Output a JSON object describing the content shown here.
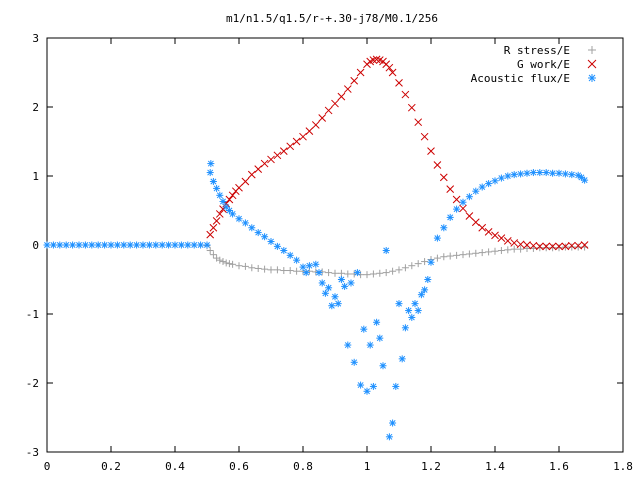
{
  "chart_data": {
    "type": "scatter",
    "title": "m1/n1.5/q1.5/r-+.30-j78/M0.1/256",
    "xlabel": "",
    "ylabel": "",
    "xlim": [
      0,
      1.8
    ],
    "ylim": [
      -3,
      3
    ],
    "xticks": [
      "0",
      "0.2",
      "0.4",
      "0.6",
      "0.8",
      "1",
      "1.2",
      "1.4",
      "1.6",
      "1.8"
    ],
    "yticks": [
      "3",
      "2",
      "1",
      "0",
      "-1",
      "-2",
      "-3"
    ],
    "grid": false,
    "legend_position": "top-right",
    "series": [
      {
        "name": "R stress/E",
        "marker": "plus",
        "color": "#a0a0a0",
        "x": [
          0.5,
          0.51,
          0.52,
          0.53,
          0.54,
          0.55,
          0.56,
          0.57,
          0.58,
          0.6,
          0.62,
          0.64,
          0.66,
          0.68,
          0.7,
          0.72,
          0.74,
          0.76,
          0.78,
          0.8,
          0.82,
          0.84,
          0.86,
          0.88,
          0.9,
          0.92,
          0.94,
          0.96,
          0.98,
          1.0,
          1.02,
          1.04,
          1.06,
          1.08,
          1.1,
          1.12,
          1.14,
          1.16,
          1.18,
          1.2,
          1.22,
          1.24,
          1.26,
          1.28,
          1.3,
          1.32,
          1.34,
          1.36,
          1.38,
          1.4,
          1.42,
          1.44,
          1.46,
          1.48,
          1.5,
          1.52,
          1.54,
          1.56,
          1.58,
          1.6,
          1.62,
          1.64,
          1.66,
          1.68
        ],
        "y": [
          -0.01,
          -0.08,
          -0.14,
          -0.19,
          -0.22,
          -0.24,
          -0.26,
          -0.27,
          -0.28,
          -0.3,
          -0.31,
          -0.33,
          -0.34,
          -0.35,
          -0.36,
          -0.36,
          -0.37,
          -0.37,
          -0.38,
          -0.38,
          -0.38,
          -0.39,
          -0.39,
          -0.4,
          -0.41,
          -0.41,
          -0.42,
          -0.42,
          -0.43,
          -0.43,
          -0.42,
          -0.41,
          -0.4,
          -0.38,
          -0.36,
          -0.33,
          -0.3,
          -0.27,
          -0.24,
          -0.21,
          -0.19,
          -0.17,
          -0.16,
          -0.15,
          -0.14,
          -0.13,
          -0.12,
          -0.11,
          -0.1,
          -0.09,
          -0.08,
          -0.07,
          -0.06,
          -0.06,
          -0.05,
          -0.05,
          -0.04,
          -0.04,
          -0.04,
          -0.04,
          -0.03,
          -0.03,
          -0.03,
          -0.03
        ]
      },
      {
        "name": "G work/E",
        "marker": "cross",
        "color": "#cc0000",
        "x": [
          0.51,
          0.52,
          0.53,
          0.54,
          0.55,
          0.56,
          0.57,
          0.58,
          0.59,
          0.6,
          0.62,
          0.64,
          0.66,
          0.68,
          0.7,
          0.72,
          0.74,
          0.76,
          0.78,
          0.8,
          0.82,
          0.84,
          0.86,
          0.88,
          0.9,
          0.92,
          0.94,
          0.96,
          0.98,
          1.0,
          1.01,
          1.02,
          1.03,
          1.04,
          1.05,
          1.06,
          1.07,
          1.08,
          1.1,
          1.12,
          1.14,
          1.16,
          1.18,
          1.2,
          1.22,
          1.24,
          1.26,
          1.28,
          1.3,
          1.32,
          1.34,
          1.36,
          1.38,
          1.4,
          1.42,
          1.44,
          1.46,
          1.48,
          1.5,
          1.52,
          1.54,
          1.56,
          1.58,
          1.6,
          1.62,
          1.64,
          1.66,
          1.68
        ],
        "y": [
          0.15,
          0.25,
          0.35,
          0.45,
          0.52,
          0.6,
          0.66,
          0.72,
          0.78,
          0.83,
          0.92,
          1.02,
          1.1,
          1.18,
          1.24,
          1.3,
          1.36,
          1.43,
          1.5,
          1.57,
          1.65,
          1.74,
          1.84,
          1.95,
          2.05,
          2.15,
          2.26,
          2.38,
          2.5,
          2.62,
          2.66,
          2.68,
          2.69,
          2.68,
          2.66,
          2.62,
          2.57,
          2.5,
          2.35,
          2.18,
          1.99,
          1.78,
          1.57,
          1.36,
          1.16,
          0.98,
          0.81,
          0.66,
          0.53,
          0.42,
          0.33,
          0.25,
          0.19,
          0.14,
          0.1,
          0.06,
          0.03,
          0.01,
          0.0,
          -0.01,
          -0.02,
          -0.02,
          -0.02,
          -0.02,
          -0.02,
          -0.01,
          -0.01,
          0.0
        ]
      },
      {
        "name": "Acoustic flux/E",
        "marker": "star",
        "color": "#1e90ff",
        "x": [
          0.0,
          0.02,
          0.04,
          0.06,
          0.08,
          0.1,
          0.12,
          0.14,
          0.16,
          0.18,
          0.2,
          0.22,
          0.24,
          0.26,
          0.28,
          0.3,
          0.32,
          0.34,
          0.36,
          0.38,
          0.4,
          0.42,
          0.44,
          0.46,
          0.48,
          0.5,
          0.51,
          0.512,
          0.52,
          0.53,
          0.54,
          0.55,
          0.56,
          0.57,
          0.58,
          0.6,
          0.62,
          0.64,
          0.66,
          0.68,
          0.7,
          0.72,
          0.74,
          0.76,
          0.78,
          0.8,
          0.81,
          0.82,
          0.84,
          0.85,
          0.86,
          0.87,
          0.88,
          0.89,
          0.9,
          0.91,
          0.92,
          0.93,
          0.94,
          0.95,
          0.96,
          0.97,
          0.98,
          0.99,
          1.0,
          1.01,
          1.02,
          1.03,
          1.04,
          1.05,
          1.06,
          1.07,
          1.08,
          1.09,
          1.1,
          1.11,
          1.12,
          1.13,
          1.14,
          1.15,
          1.16,
          1.17,
          1.18,
          1.19,
          1.2,
          1.22,
          1.24,
          1.26,
          1.28,
          1.3,
          1.32,
          1.34,
          1.36,
          1.38,
          1.4,
          1.42,
          1.44,
          1.46,
          1.48,
          1.5,
          1.52,
          1.54,
          1.56,
          1.58,
          1.6,
          1.62,
          1.64,
          1.66,
          1.67,
          1.68
        ],
        "y": [
          0.0,
          0.0,
          0.0,
          0.0,
          0.0,
          0.0,
          0.0,
          0.0,
          0.0,
          0.0,
          0.0,
          0.0,
          0.0,
          0.0,
          0.0,
          0.0,
          0.0,
          0.0,
          0.0,
          0.0,
          0.0,
          0.0,
          0.0,
          0.0,
          0.0,
          0.0,
          1.05,
          1.18,
          0.92,
          0.82,
          0.72,
          0.63,
          0.55,
          0.5,
          0.45,
          0.38,
          0.32,
          0.25,
          0.18,
          0.12,
          0.05,
          -0.02,
          -0.08,
          -0.15,
          -0.22,
          -0.32,
          -0.4,
          -0.3,
          -0.28,
          -0.4,
          -0.55,
          -0.7,
          -0.62,
          -0.88,
          -0.75,
          -0.85,
          -0.5,
          -0.6,
          -1.45,
          -0.55,
          -1.7,
          -0.4,
          -2.03,
          -1.22,
          -2.12,
          -1.45,
          -2.05,
          -1.12,
          -1.35,
          -1.75,
          -0.08,
          -2.78,
          -2.58,
          -2.05,
          -0.85,
          -1.65,
          -1.2,
          -0.95,
          -1.05,
          -0.85,
          -0.95,
          -0.72,
          -0.65,
          -0.5,
          -0.25,
          0.1,
          0.25,
          0.4,
          0.52,
          0.62,
          0.7,
          0.78,
          0.84,
          0.89,
          0.93,
          0.97,
          1.0,
          1.02,
          1.03,
          1.04,
          1.05,
          1.05,
          1.05,
          1.04,
          1.04,
          1.03,
          1.02,
          1.01,
          0.98,
          0.94
        ]
      }
    ]
  }
}
